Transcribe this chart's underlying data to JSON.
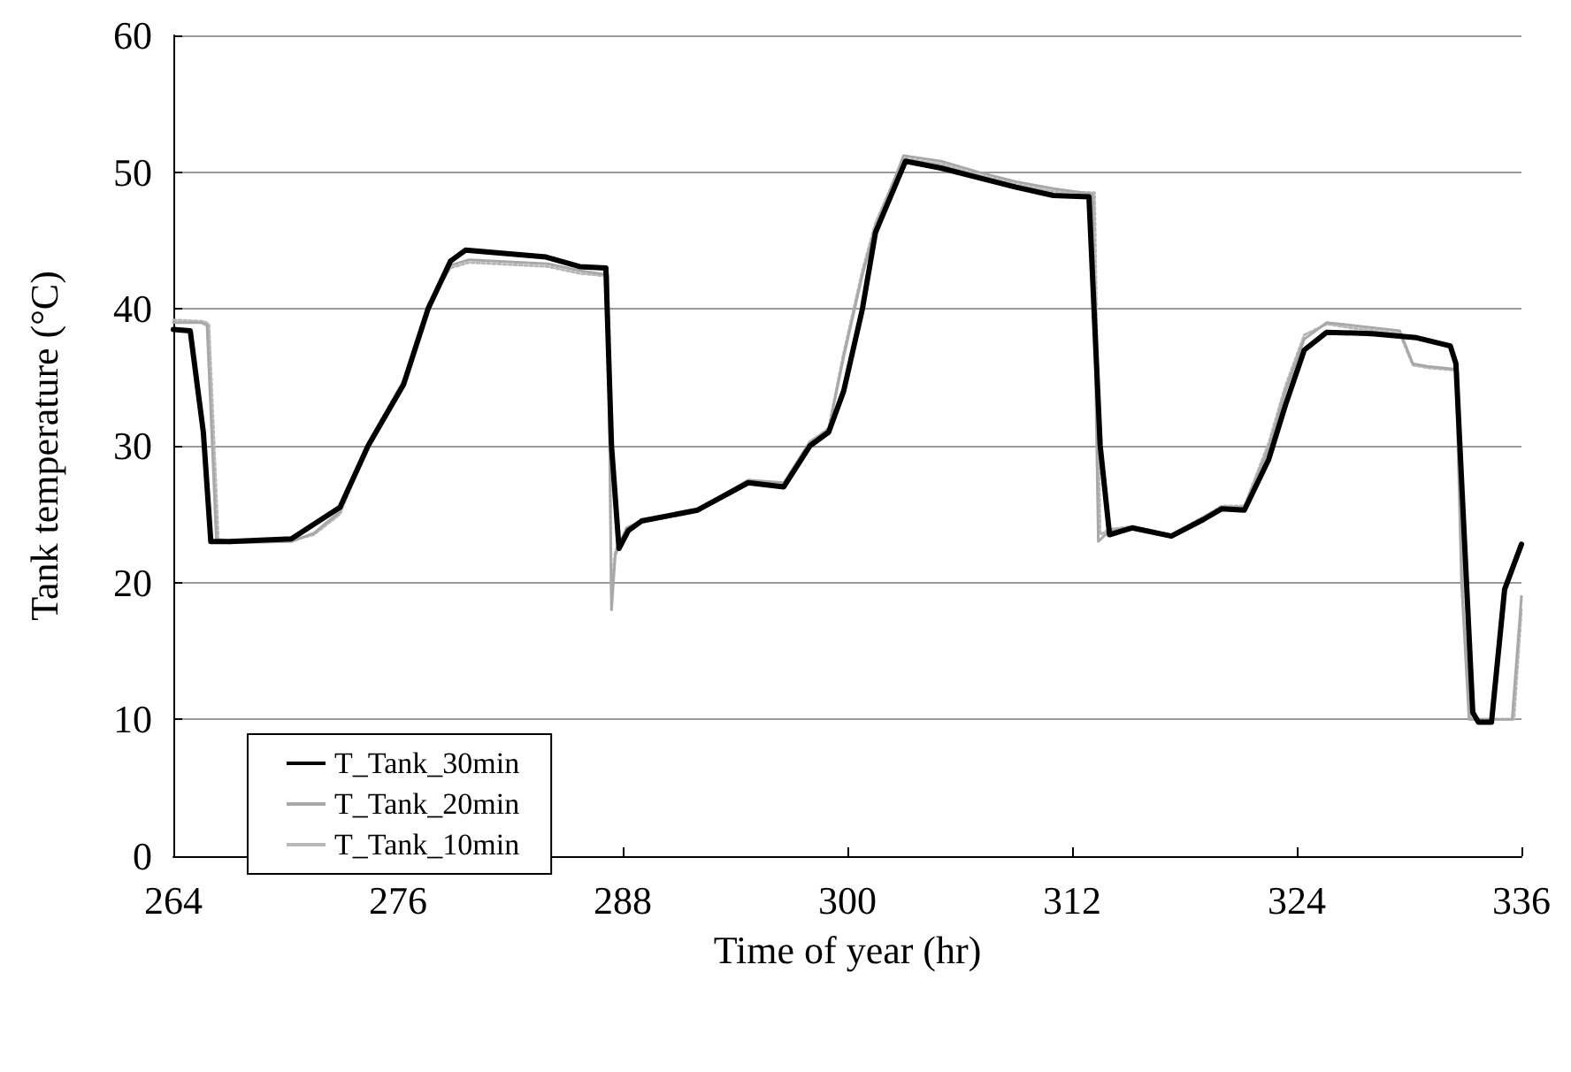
{
  "chart_data": {
    "type": "line",
    "xlabel": "Time of year (hr)",
    "ylabel": "Tank temperature (°C)",
    "xlim": [
      264,
      336
    ],
    "xticks": [
      264,
      276,
      288,
      300,
      312,
      324,
      336
    ],
    "ylim": [
      0,
      60
    ],
    "yticks": [
      0,
      10,
      20,
      30,
      40,
      50,
      60
    ],
    "grid": "y",
    "legend": "bottom left",
    "marker": "none",
    "series": [
      {
        "name": "T_Tank_30min",
        "color": "#000000",
        "line_style": "solid",
        "x": [
          264,
          264.9,
          265.6,
          266,
          267,
          270.3,
          272.9,
          274.4,
          276.3,
          277.6,
          278.8,
          279.6,
          283.9,
          285.7,
          287.1,
          287.4,
          287.8,
          288.3,
          289,
          292,
          294.7,
          296.6,
          298,
          299,
          299.8,
          300.8,
          301.5,
          303.1,
          305,
          307,
          309,
          311,
          312.9,
          313.5,
          314,
          315.2,
          317.3,
          319,
          320,
          321.2,
          322.5,
          323.4,
          324.4,
          325.6,
          328,
          330.4,
          332.2,
          332.5,
          333.4,
          333.7,
          334.4,
          335.1,
          336
        ],
        "values": [
          38.5,
          38.4,
          31,
          23,
          23,
          23.2,
          25.5,
          30,
          34.5,
          40,
          43.5,
          44.3,
          43.8,
          43.1,
          43,
          30,
          22.5,
          23.8,
          24.5,
          25.3,
          27.3,
          27,
          30,
          31,
          34,
          40,
          45.6,
          50.8,
          50.3,
          49.6,
          48.9,
          48.3,
          48.2,
          30,
          23.5,
          24,
          23.4,
          24.6,
          25.4,
          25.3,
          29,
          33,
          37,
          38.3,
          38.2,
          37.9,
          37.3,
          36,
          10.5,
          9.8,
          9.8,
          19.5,
          22.8
        ]
      },
      {
        "name": "T_Tank_20min",
        "color": "#a8a8a8",
        "line_style": "solid",
        "x": [
          264,
          265.5,
          265.8,
          266.3,
          267,
          270.3,
          271.5,
          272.9,
          274.4,
          276.3,
          277.6,
          278.8,
          279.8,
          284,
          285.7,
          287.2,
          287.4,
          287.6,
          288.2,
          289,
          292,
          294.7,
          296.6,
          298,
          299,
          299.8,
          300.8,
          301.5,
          303,
          305,
          307,
          309,
          311,
          313.1,
          313.4,
          314,
          315.2,
          317.3,
          319,
          320,
          321.2,
          322.5,
          323.4,
          324.4,
          325.6,
          327,
          329.5,
          330.2,
          331,
          332.5,
          332.8,
          333.2,
          334.5,
          335.5,
          336
        ],
        "values": [
          39,
          39,
          38.8,
          23,
          22.9,
          23,
          23.6,
          25.2,
          30,
          34.5,
          40,
          43.2,
          43.6,
          43.3,
          42.8,
          42.5,
          18,
          22,
          24,
          24.5,
          25.3,
          27.5,
          27.3,
          30.3,
          31.2,
          36.5,
          42.5,
          46,
          51.2,
          50.8,
          50,
          49.3,
          48.8,
          48.4,
          23,
          23.8,
          24,
          23.4,
          24.7,
          25.5,
          25.5,
          29.8,
          34,
          37.8,
          39,
          38.8,
          38.4,
          36,
          35.8,
          35.6,
          20,
          10,
          10,
          10,
          19
        ]
      },
      {
        "name": "T_Tank_10min",
        "color": "#b8b8b8",
        "line_style": "dotted",
        "x": [
          264,
          265.6,
          265.9,
          266.4,
          267,
          270.3,
          271.5,
          272.9,
          274.4,
          276.3,
          277.6,
          278.8,
          279.8,
          284,
          285.7,
          287.2,
          287.4,
          287.6,
          288.2,
          289,
          292,
          294.7,
          296.6,
          298,
          299,
          299.8,
          300.8,
          301.5,
          303,
          305,
          307,
          309,
          311,
          313.2,
          313.5,
          314,
          315.2,
          317.3,
          319,
          320,
          321.2,
          322.5,
          323.4,
          324.4,
          325.6,
          327,
          329.5,
          330.2,
          331,
          332.6,
          332.9,
          333.3,
          334.8,
          335.6,
          336
        ],
        "values": [
          39.2,
          39.1,
          38.9,
          23.2,
          23,
          23.1,
          23.5,
          25,
          30.2,
          34.8,
          40.3,
          43,
          43.4,
          43.1,
          42.6,
          42.4,
          19,
          22.3,
          23.9,
          24.4,
          25.2,
          27.4,
          27.2,
          30.2,
          31.3,
          36.8,
          42.8,
          46.3,
          51,
          50.6,
          49.8,
          49.1,
          48.6,
          48.5,
          23.5,
          23.9,
          24.1,
          23.5,
          24.8,
          25.6,
          25.6,
          30.2,
          34.4,
          38.1,
          38.9,
          38.6,
          38.2,
          35.9,
          35.7,
          35.5,
          18,
          10,
          10,
          10,
          18
        ]
      }
    ]
  }
}
